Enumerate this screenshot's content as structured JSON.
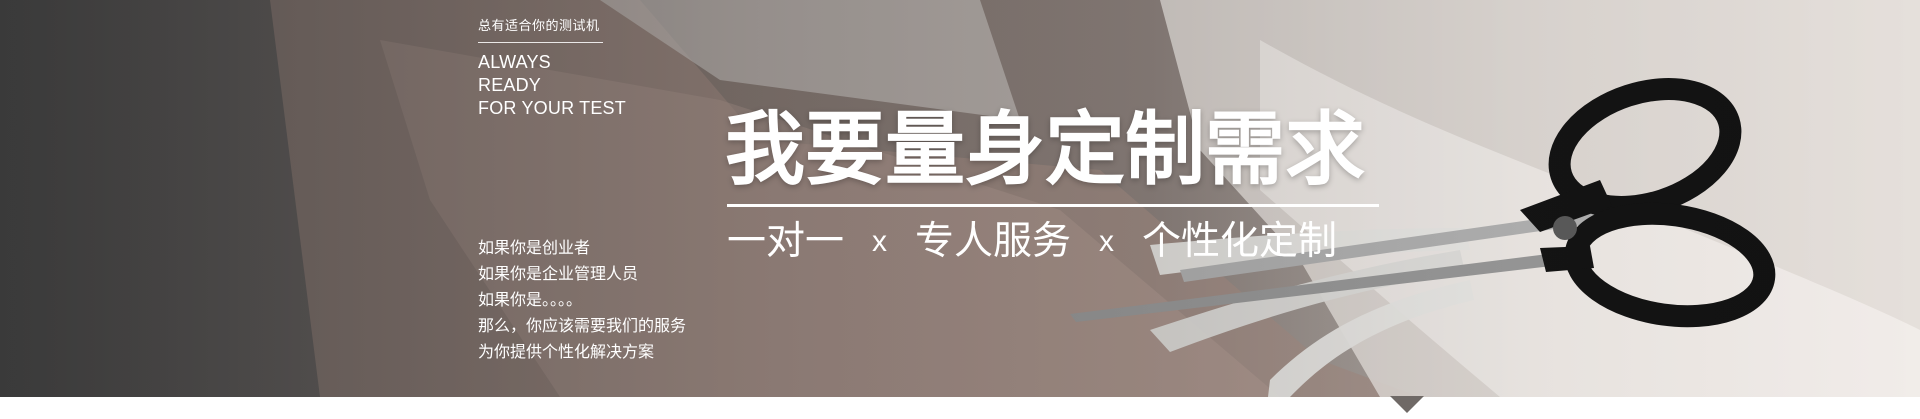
{
  "banner": {
    "tagline": "总有适合你的测试机",
    "english_lines": [
      "ALWAYS",
      "READY",
      "FOR  YOUR TEST"
    ],
    "headline": "我要量身定制需求",
    "subline": {
      "items": [
        "一对一",
        "专人服务",
        "个性化定制"
      ],
      "separator": "x"
    },
    "intro_lines": [
      "如果你是创业者",
      "如果你是企业管理人员",
      "如果你是。。。。",
      "那么，你应该需要我们的服务",
      "为你提供个性化解决方案"
    ]
  },
  "colors": {
    "text": "#ffffff",
    "background_dark": "#4a4a4a",
    "fabric": "#8e827d",
    "page": "#ffffff"
  },
  "icons": [
    "scissors-icon",
    "tape-measure-icon",
    "pointer-arrow-icon"
  ]
}
